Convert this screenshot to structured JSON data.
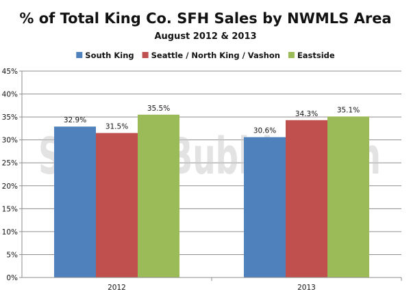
{
  "watermark_text": "SeattleBubble.com",
  "chart_data": {
    "type": "bar",
    "title": "% of Total King Co. SFH Sales by NWMLS Area",
    "subtitle": "August 2012 & 2013",
    "categories": [
      "2012",
      "2013"
    ],
    "series": [
      {
        "name": "South King",
        "color": "#4f81bd",
        "values": [
          32.9,
          30.6
        ],
        "labels": [
          "32.9%",
          "30.6%"
        ]
      },
      {
        "name": "Seattle / North King / Vashon",
        "color": "#c0504d",
        "values": [
          31.5,
          34.3
        ],
        "labels": [
          "31.5%",
          "34.3%"
        ]
      },
      {
        "name": "Eastside",
        "color": "#9bbb59",
        "values": [
          35.5,
          35.1
        ],
        "labels": [
          "35.5%",
          "35.1%"
        ]
      }
    ],
    "ylim": [
      0,
      45
    ],
    "yticks": [
      0,
      5,
      10,
      15,
      20,
      25,
      30,
      35,
      40,
      45
    ],
    "ytick_labels": [
      "0%",
      "5%",
      "10%",
      "15%",
      "20%",
      "25%",
      "30%",
      "35%",
      "40%",
      "45%"
    ],
    "xlabel": "",
    "ylabel": "",
    "grid": true,
    "legend_position": "top"
  }
}
